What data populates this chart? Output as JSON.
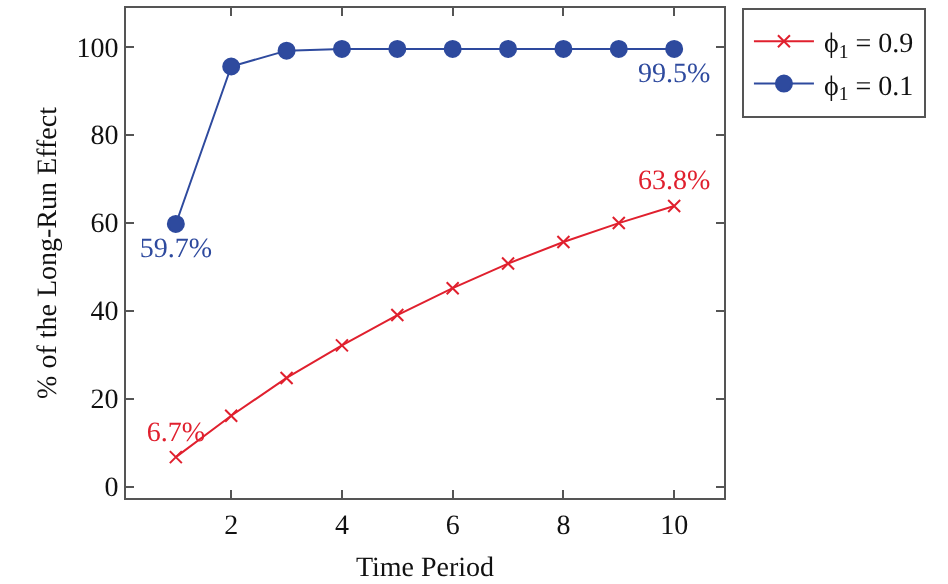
{
  "chart_data": {
    "type": "line",
    "xlabel": "Time Period",
    "ylabel": "% of the Long-Run Effect",
    "x": [
      1,
      2,
      3,
      4,
      5,
      6,
      7,
      8,
      9,
      10
    ],
    "series": [
      {
        "name": "ϕ$_{1}$ = 0.9",
        "color": "#e0202e",
        "marker": "cross",
        "values": [
          6.7,
          16.1,
          24.7,
          32.1,
          39.0,
          45.1,
          50.7,
          55.6,
          59.9,
          63.8
        ],
        "value_labels": [
          "6.7%",
          null,
          null,
          null,
          null,
          null,
          null,
          null,
          null,
          "63.8%"
        ]
      },
      {
        "name": "ϕ$_{1}$ = 0.1",
        "color": "#2e4a9e",
        "marker": "circle",
        "values": [
          59.7,
          95.5,
          99.1,
          99.5,
          99.5,
          99.5,
          99.5,
          99.5,
          99.5,
          99.5
        ],
        "value_labels": [
          "59.7%",
          null,
          null,
          null,
          null,
          null,
          null,
          null,
          null,
          "99.5%"
        ]
      }
    ],
    "xlim": [
      0.1,
      10.9
    ],
    "xticks": [
      2,
      4,
      6,
      8,
      10
    ],
    "ylim": [
      -2.6,
      108.8
    ],
    "yticks": [
      0,
      20,
      40,
      60,
      80,
      100
    ],
    "grid": false,
    "legend": "top right",
    "line_style": "solid"
  }
}
